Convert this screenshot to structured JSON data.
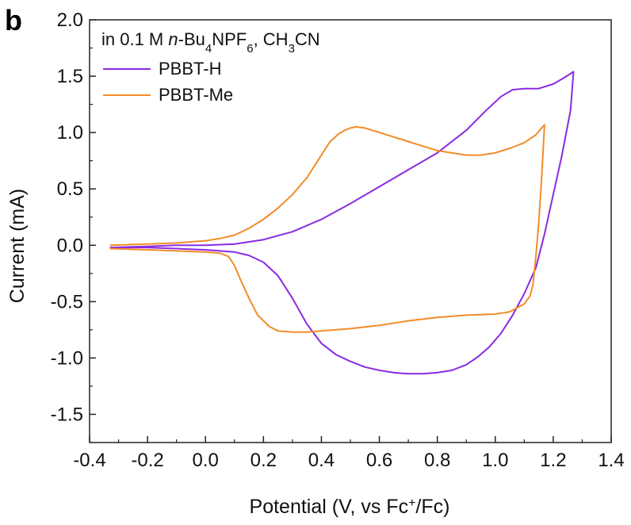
{
  "panel_label": "b",
  "annotation": {
    "prefix": "in 0.1 M ",
    "italic": "n",
    "part1": "-Bu",
    "sub1": "4",
    "part2": "NPF",
    "sub2": "6",
    "part3": ", CH",
    "sub3": "3",
    "part4": "CN"
  },
  "xlabel": {
    "pre": "Potential (V, vs Fc",
    "sup": "+",
    "post": "/Fc)"
  },
  "colors": {
    "PBBT-H": "#8a2be2",
    "PBBT-Me": "#f28c28"
  },
  "chart_data": {
    "type": "line",
    "title": "",
    "xlabel": "Potential (V, vs Fc+/Fc)",
    "ylabel": "Current (mA)",
    "xlim": [
      -0.4,
      1.4
    ],
    "ylim": [
      -1.75,
      2.0
    ],
    "xticks": [
      -0.4,
      -0.2,
      0.0,
      0.2,
      0.4,
      0.6,
      0.8,
      1.0,
      1.2,
      1.4
    ],
    "xtick_labels": [
      "-0.4",
      "-0.2",
      "0.0",
      "0.2",
      "0.4",
      "0.6",
      "0.8",
      "1.0",
      "1.2",
      "1.4"
    ],
    "yticks": [
      -1.5,
      -1.0,
      -0.5,
      0.0,
      0.5,
      1.0,
      1.5,
      2.0
    ],
    "ytick_labels": [
      "-1.5",
      "-1.0",
      "-0.5",
      "0.0",
      "0.5",
      "1.0",
      "1.5",
      "2.0"
    ],
    "legend_position": "top-left",
    "grid": false,
    "series": [
      {
        "name": "PBBT-H",
        "x": [
          -0.33,
          -0.2,
          -0.1,
          0.0,
          0.1,
          0.2,
          0.3,
          0.4,
          0.5,
          0.6,
          0.7,
          0.8,
          0.9,
          0.97,
          1.02,
          1.06,
          1.1,
          1.15,
          1.2,
          1.24,
          1.27,
          1.26,
          1.23,
          1.2,
          1.17,
          1.14,
          1.1,
          1.06,
          1.02,
          0.98,
          0.94,
          0.9,
          0.85,
          0.8,
          0.75,
          0.7,
          0.65,
          0.6,
          0.55,
          0.5,
          0.45,
          0.4,
          0.35,
          0.3,
          0.25,
          0.2,
          0.15,
          0.1,
          0.05,
          0.0,
          -0.1,
          -0.2,
          -0.33
        ],
        "y": [
          -0.02,
          -0.01,
          0.0,
          0.0,
          0.01,
          0.05,
          0.12,
          0.23,
          0.37,
          0.52,
          0.67,
          0.82,
          1.02,
          1.2,
          1.32,
          1.38,
          1.39,
          1.39,
          1.43,
          1.49,
          1.54,
          1.2,
          0.8,
          0.45,
          0.1,
          -0.2,
          -0.43,
          -0.62,
          -0.78,
          -0.9,
          -0.99,
          -1.06,
          -1.11,
          -1.13,
          -1.14,
          -1.14,
          -1.13,
          -1.11,
          -1.08,
          -1.03,
          -0.97,
          -0.87,
          -0.7,
          -0.47,
          -0.27,
          -0.15,
          -0.09,
          -0.06,
          -0.05,
          -0.04,
          -0.03,
          -0.02,
          -0.02
        ]
      },
      {
        "name": "PBBT-Me",
        "x": [
          -0.33,
          -0.2,
          -0.1,
          0.0,
          0.05,
          0.1,
          0.15,
          0.2,
          0.25,
          0.3,
          0.35,
          0.4,
          0.43,
          0.46,
          0.48,
          0.5,
          0.52,
          0.55,
          0.6,
          0.7,
          0.8,
          0.9,
          0.95,
          1.0,
          1.05,
          1.1,
          1.14,
          1.17,
          1.16,
          1.15,
          1.14,
          1.13,
          1.12,
          1.1,
          1.05,
          1.0,
          0.9,
          0.8,
          0.7,
          0.6,
          0.5,
          0.4,
          0.35,
          0.3,
          0.25,
          0.22,
          0.18,
          0.15,
          0.12,
          0.1,
          0.08,
          0.05,
          0.0,
          -0.1,
          -0.2,
          -0.33
        ],
        "y": [
          0.0,
          0.01,
          0.02,
          0.04,
          0.06,
          0.09,
          0.15,
          0.23,
          0.33,
          0.45,
          0.6,
          0.8,
          0.92,
          0.99,
          1.02,
          1.04,
          1.05,
          1.04,
          1.0,
          0.92,
          0.84,
          0.8,
          0.8,
          0.82,
          0.86,
          0.91,
          0.98,
          1.07,
          0.6,
          0.2,
          -0.1,
          -0.35,
          -0.45,
          -0.52,
          -0.59,
          -0.61,
          -0.62,
          -0.64,
          -0.67,
          -0.71,
          -0.74,
          -0.76,
          -0.77,
          -0.77,
          -0.76,
          -0.72,
          -0.62,
          -0.47,
          -0.3,
          -0.18,
          -0.1,
          -0.07,
          -0.06,
          -0.05,
          -0.04,
          -0.03
        ]
      }
    ]
  }
}
